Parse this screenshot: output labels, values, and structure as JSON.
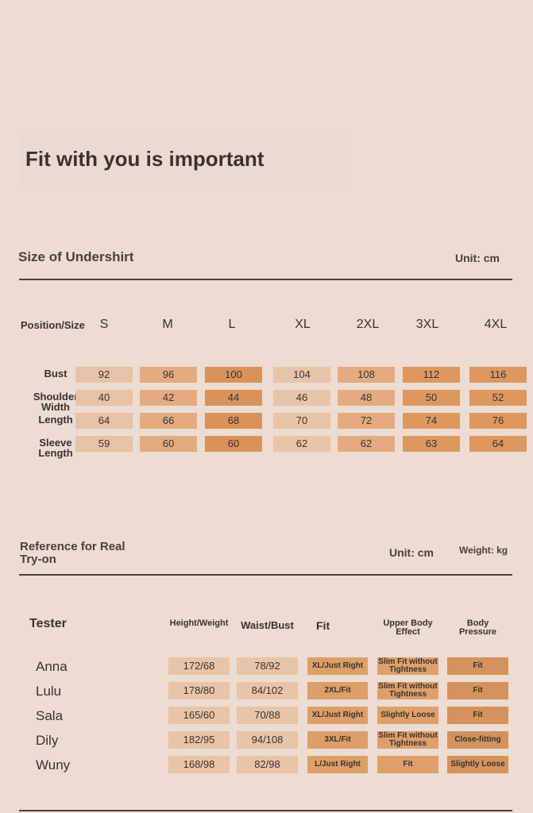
{
  "title": "Fit with you is important",
  "size_chart": {
    "heading": "Size of Undershirt",
    "unit": "Unit: cm",
    "corner": "Position/Size",
    "sizes": [
      "S",
      "M",
      "L",
      "XL",
      "2XL",
      "3XL",
      "4XL"
    ],
    "rows": [
      {
        "label": "Bust",
        "values": [
          92,
          96,
          100,
          104,
          108,
          112,
          116
        ]
      },
      {
        "label": "Shoulder Width",
        "values": [
          40,
          42,
          44,
          46,
          48,
          50,
          52
        ]
      },
      {
        "label": "Length",
        "values": [
          64,
          66,
          68,
          70,
          72,
          74,
          76
        ]
      },
      {
        "label": "Sleeve Length",
        "values": [
          59,
          60,
          60,
          62,
          62,
          63,
          64
        ]
      }
    ]
  },
  "try_on": {
    "heading": "Reference for Real Try-on",
    "unit": "Unit: cm",
    "weight_unit": "Weight: kg",
    "columns": [
      "Tester",
      "Height/Weight",
      "Waist/Bust",
      "Fit",
      "Upper Body Effect",
      "Body Pressure"
    ],
    "rows": [
      [
        "Anna",
        "172/68",
        "78/92",
        "XL/Just Right",
        "Slim Fit without Tightness",
        "Fit"
      ],
      [
        "Lulu",
        "178/80",
        "84/102",
        "2XL/Fit",
        "Slim Fit without Tightness",
        "Fit"
      ],
      [
        "Sala",
        "165/60",
        "70/88",
        "XL/Just Right",
        "Slightly Loose",
        "Fit"
      ],
      [
        "Dily",
        "182/95",
        "94/108",
        "3XL/Fit",
        "Slim Fit without Tightness",
        "Close-fitting"
      ],
      [
        "Wuny",
        "168/98",
        "82/98",
        "L/Just Right",
        "Fit",
        "Slightly Loose"
      ]
    ]
  }
}
